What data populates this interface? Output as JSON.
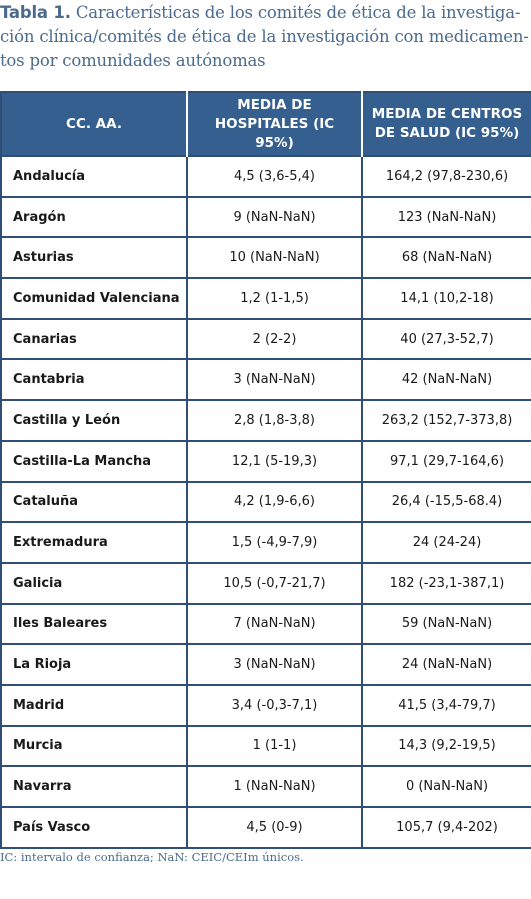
{
  "caption": {
    "label": "Tabla 1.",
    "lines": [
      "Características de los comités de ética de la investiga-",
      "ción clínica/comités de ética de la investigación con medicamen-",
      "tos por comunidades autónomas"
    ]
  },
  "table": {
    "headers": [
      "CC. AA.",
      "MEDIA DE HOSPITALES (IC 95%)",
      "MEDIA DE CENTROS DE SALUD (IC 95%)"
    ],
    "rows": [
      [
        "Andalucía",
        "4,5 (3,6-5,4)",
        "164,2 (97,8-230,6)"
      ],
      [
        "Aragón",
        "9 (NaN-NaN)",
        "123 (NaN-NaN)"
      ],
      [
        "Asturias",
        "10 (NaN-NaN)",
        "68 (NaN-NaN)"
      ],
      [
        "Comunidad Valenciana",
        "1,2 (1-1,5)",
        "14,1 (10,2-18)"
      ],
      [
        "Canarias",
        "2 (2-2)",
        "40 (27,3-52,7)"
      ],
      [
        "Cantabria",
        "3 (NaN-NaN)",
        "42 (NaN-NaN)"
      ],
      [
        "Castilla y León",
        "2,8 (1,8-3,8)",
        "263,2 (152,7-373,8)"
      ],
      [
        "Castilla-La Mancha",
        "12,1 (5-19,3)",
        "97,1 (29,7-164,6)"
      ],
      [
        "Cataluña",
        "4,2 (1,9-6,6)",
        "26,4 (-15,5-68.4)"
      ],
      [
        "Extremadura",
        "1,5 (-4,9-7,9)",
        "24 (24-24)"
      ],
      [
        "Galicia",
        "10,5 (-0,7-21,7)",
        "182 (-23,1-387,1)"
      ],
      [
        "Iles Baleares",
        "7 (NaN-NaN)",
        "59 (NaN-NaN)"
      ],
      [
        "La Rioja",
        "3 (NaN-NaN)",
        "24 (NaN-NaN)"
      ],
      [
        "Madrid",
        "3,4 (-0,3-7,1)",
        "41,5 (3,4-79,7)"
      ],
      [
        "Murcia",
        "1 (1-1)",
        "14,3 (9,2-19,5)"
      ],
      [
        "Navarra",
        "1 (NaN-NaN)",
        "0 (NaN-NaN)"
      ],
      [
        "País Vasco",
        "4,5 (0-9)",
        "105,7 (9,4-202)"
      ]
    ]
  },
  "footnote": "IC: intervalo de confianza; NaN: CEIC/CEIm únicos.",
  "colors": {
    "header_bg": "#355f8e",
    "border": "#2f4f77",
    "caption_text": "#4b6b8e"
  }
}
